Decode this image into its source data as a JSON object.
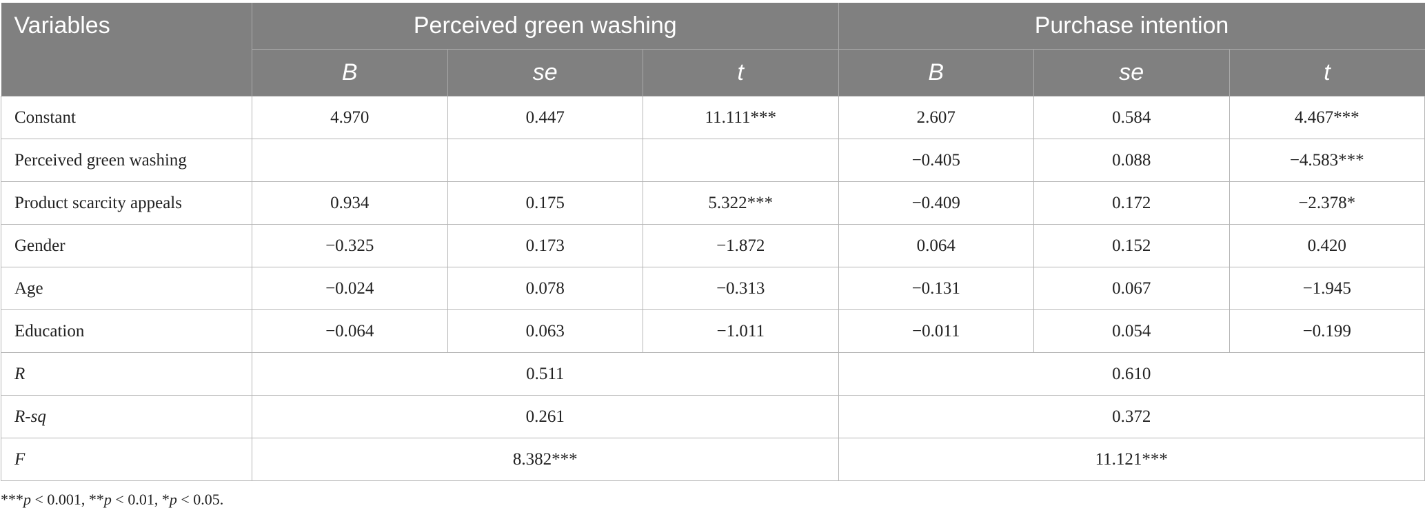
{
  "header": {
    "variables": "Variables",
    "groups": [
      "Perceived green washing",
      "Purchase intention"
    ],
    "sub": [
      "B",
      "se",
      "t",
      "B",
      "se",
      "t"
    ]
  },
  "rows": [
    {
      "label": "Constant",
      "cells": [
        "4.970",
        "0.447",
        "11.111***",
        "2.607",
        "0.584",
        "4.467***"
      ]
    },
    {
      "label": "Perceived green washing",
      "cells": [
        "",
        "",
        "",
        "−0.405",
        "0.088",
        "−4.583***"
      ]
    },
    {
      "label": "Product scarcity appeals",
      "cells": [
        "0.934",
        "0.175",
        "5.322***",
        "−0.409",
        "0.172",
        "−2.378*"
      ]
    },
    {
      "label": "Gender",
      "cells": [
        "−0.325",
        "0.173",
        "−1.872",
        "0.064",
        "0.152",
        "0.420"
      ]
    },
    {
      "label": "Age",
      "cells": [
        "−0.024",
        "0.078",
        "−0.313",
        "−0.131",
        "0.067",
        "−1.945"
      ]
    },
    {
      "label": "Education",
      "cells": [
        "−0.064",
        "0.063",
        "−1.011",
        "−0.011",
        "0.054",
        "−0.199"
      ]
    }
  ],
  "summary": [
    {
      "label": "R",
      "values": [
        "0.511",
        "0.610"
      ]
    },
    {
      "label": "R-sq",
      "values": [
        "0.261",
        "0.372"
      ]
    },
    {
      "label": "F",
      "values": [
        "8.382***",
        "11.121***"
      ]
    }
  ],
  "note": {
    "p1": "p",
    "t1": " < 0.001, ",
    "p2": "p",
    "t2": " < 0.01, ",
    "p3": "p",
    "t3": " < 0.05.",
    "s1": "***",
    "s2": "**",
    "s3": "*"
  }
}
